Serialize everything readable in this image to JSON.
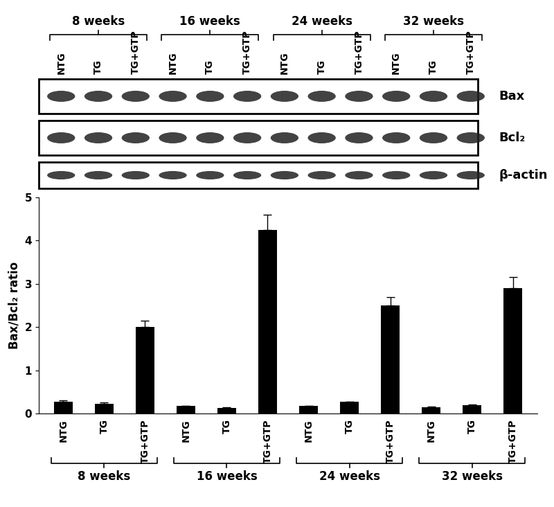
{
  "chart_data": {
    "type": "bar",
    "categories": [
      "NTG",
      "TG",
      "TG+GTP",
      "NTG",
      "TG",
      "TG+GTP",
      "NTG",
      "TG",
      "TG+GTP",
      "NTG",
      "TG",
      "TG+GTP"
    ],
    "groups": [
      "8 weeks",
      "16 weeks",
      "24 weeks",
      "32 weeks"
    ],
    "values": [
      0.28,
      0.22,
      2.0,
      0.17,
      0.13,
      4.25,
      0.17,
      0.27,
      2.5,
      0.15,
      0.2,
      2.9
    ],
    "errors": [
      0.03,
      0.03,
      0.15,
      0.01,
      0.01,
      0.35,
      0.01,
      0.01,
      0.2,
      0.01,
      0.01,
      0.25
    ],
    "color": "#000000",
    "ylabel": "Bax/Bcl₂ ratio",
    "ylim": [
      0,
      5
    ],
    "yticks": [
      0,
      1,
      2,
      3,
      4,
      5
    ]
  },
  "blot": {
    "rows": [
      "Bax",
      "Bcl₂",
      "β-actin"
    ]
  }
}
